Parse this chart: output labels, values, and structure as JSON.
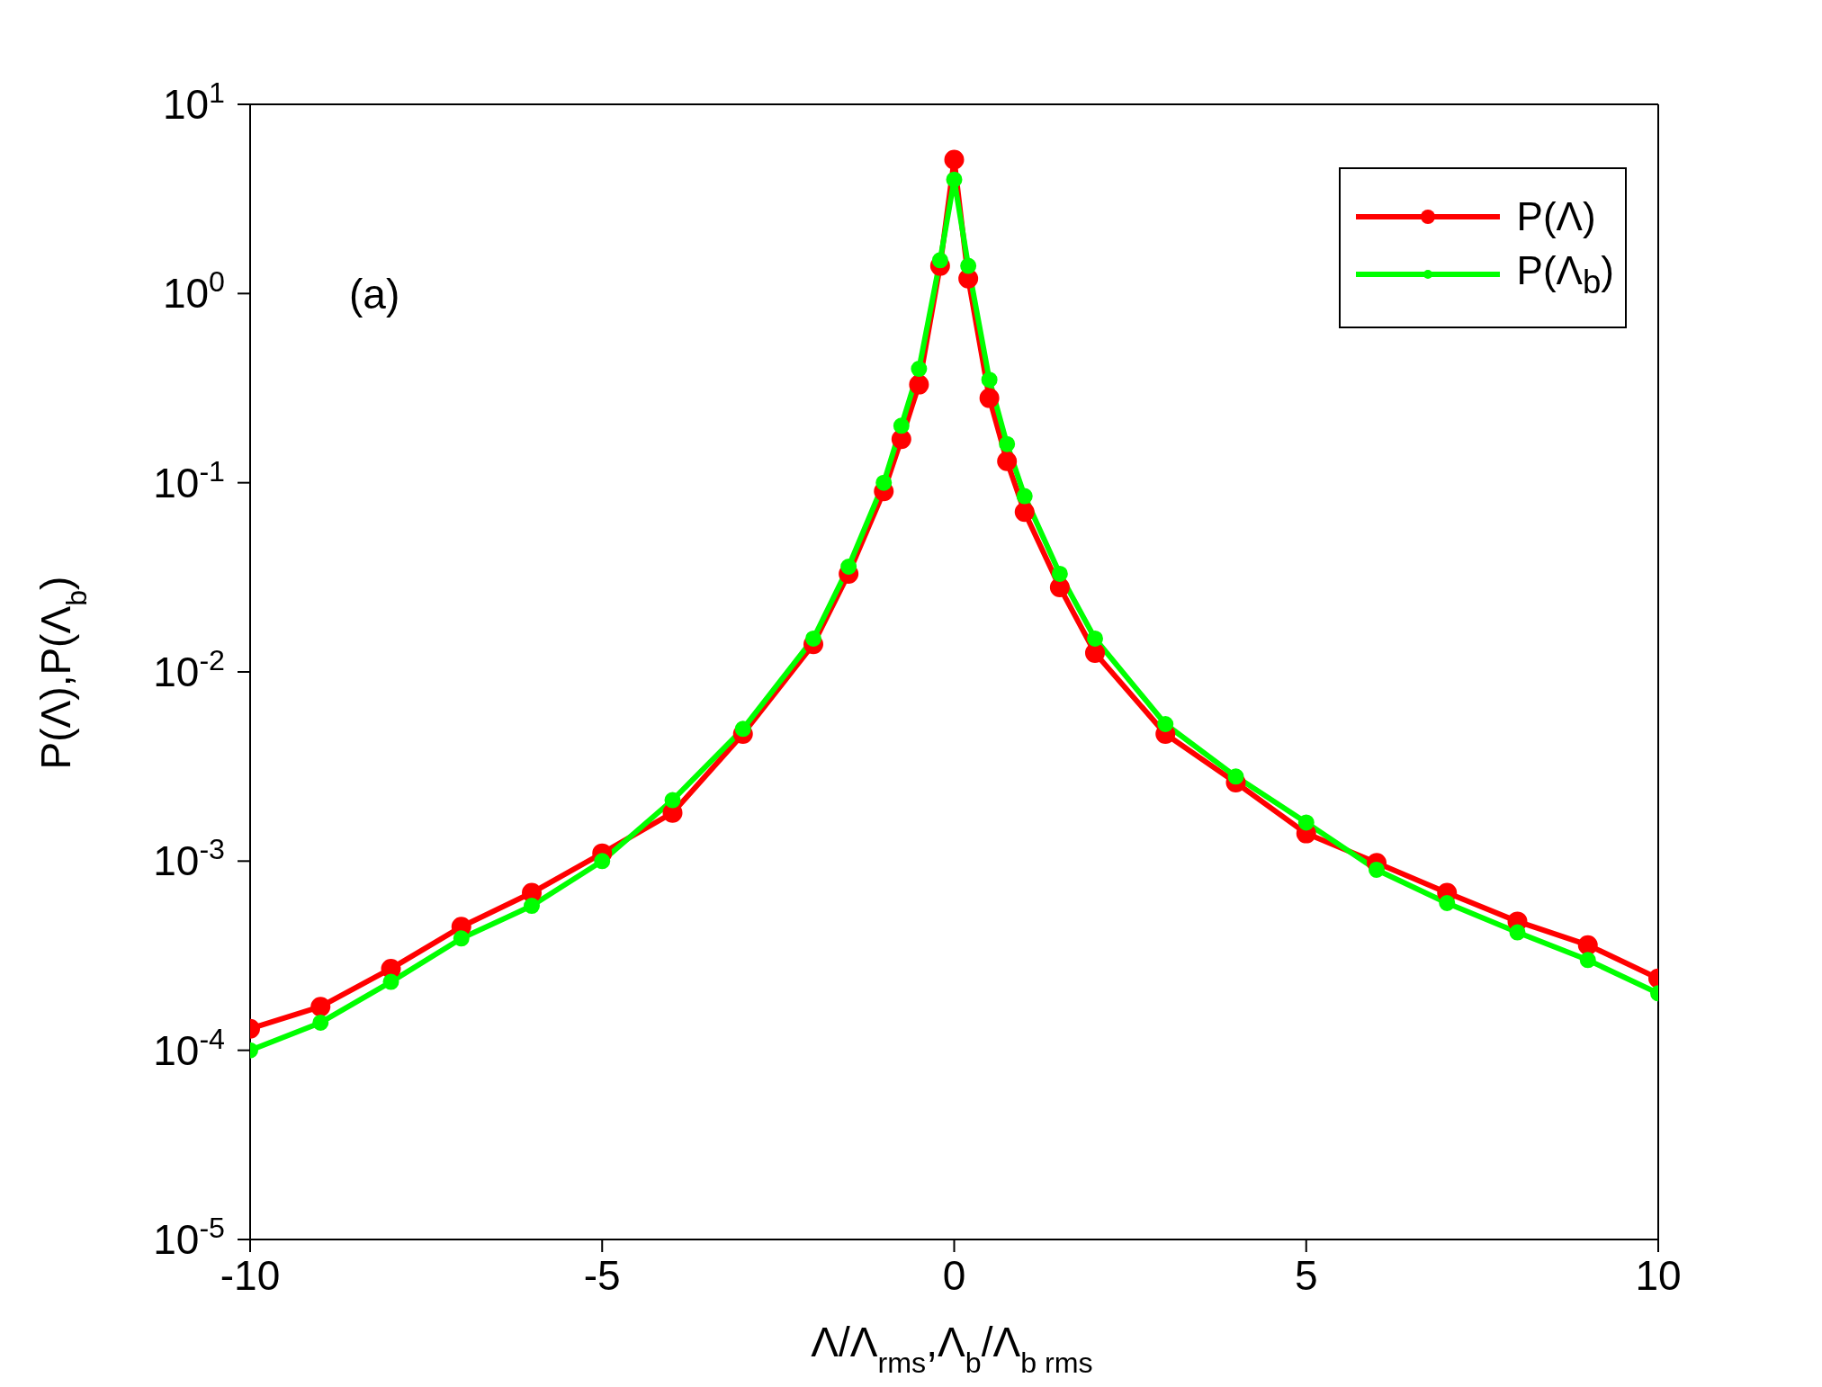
{
  "chart_data": {
    "type": "line",
    "xlabel": "Λ/Λ$_{rms}$,Λ$_{b}$/Λ$_{b rms}$",
    "ylabel": "P(Λ),P(Λ$_{b}$)",
    "annotations": [
      "(a)"
    ],
    "x": [
      -10,
      -9,
      -8,
      -7,
      -6,
      -5,
      -4,
      -3,
      -2,
      -1.5,
      -1,
      -0.75,
      -0.5,
      -0.2,
      0,
      0.2,
      0.5,
      0.75,
      1,
      1.5,
      2,
      3,
      4,
      5,
      6,
      7,
      8,
      9,
      10
    ],
    "series": [
      {
        "name": "P(Λ)",
        "color": "#ff0000",
        "values": [
          0.00013,
          0.00017,
          0.00027,
          0.00045,
          0.00068,
          0.0011,
          0.0018,
          0.0047,
          0.014,
          0.033,
          0.09,
          0.17,
          0.33,
          1.4,
          5.1,
          1.2,
          0.28,
          0.13,
          0.07,
          0.028,
          0.0126,
          0.0047,
          0.0026,
          0.0014,
          0.00098,
          0.00068,
          0.00048,
          0.00036,
          0.00024
        ]
      },
      {
        "name": "P(Λ$_{b}$)",
        "color": "#00ff00",
        "values": [
          0.0001,
          0.00014,
          0.00023,
          0.00039,
          0.00058,
          0.001,
          0.0021,
          0.005,
          0.015,
          0.036,
          0.1,
          0.2,
          0.4,
          1.5,
          4,
          1.4,
          0.35,
          0.16,
          0.085,
          0.033,
          0.015,
          0.0053,
          0.0028,
          0.0016,
          0.0009,
          0.0006,
          0.00042,
          0.0003,
          0.0002
        ]
      }
    ],
    "xlim": [
      -10,
      10
    ],
    "xticks": [
      -10,
      -5,
      0,
      5,
      10
    ],
    "ylim": [
      1e-05,
      10
    ],
    "yticks": [
      {
        "value": 1e-05,
        "label": "10$^{-5}$"
      },
      {
        "value": 0.0001,
        "label": "10$^{-4}$"
      },
      {
        "value": 0.001,
        "label": "10$^{-3}$"
      },
      {
        "value": 0.01,
        "label": "10$^{-2}$"
      },
      {
        "value": 0.1,
        "label": "10$^{-1}$"
      },
      {
        "value": 1,
        "label": "10$^{0}$"
      },
      {
        "value": 10,
        "label": "10$^{1}$"
      }
    ],
    "log": "y",
    "grid": false,
    "legend": "top right",
    "marker": "circle",
    "line_style": "solid"
  }
}
